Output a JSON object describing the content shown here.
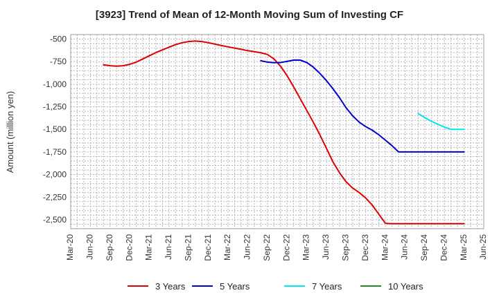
{
  "chart_data": {
    "type": "line",
    "title": "[3923]  Trend of Mean of 12-Month Moving Sum of Investing CF",
    "xlabel": "",
    "ylabel": "Amount (million yen)",
    "ylim": [
      -2600,
      -450
    ],
    "y_ticks": [
      -500,
      -750,
      -1000,
      -1250,
      -1500,
      -1750,
      -2000,
      -2250,
      -2500
    ],
    "y_tick_labels": [
      "-500",
      "-750",
      "-1,000",
      "-1,250",
      "-1,500",
      "-1,750",
      "-2,000",
      "-2,250",
      "-2,500"
    ],
    "x_tick_labels": [
      "Mar-20",
      "Jun-20",
      "Sep-20",
      "Dec-20",
      "Mar-21",
      "Jun-21",
      "Sep-21",
      "Dec-21",
      "Mar-22",
      "Jun-22",
      "Sep-22",
      "Dec-22",
      "Mar-23",
      "Jun-23",
      "Sep-23",
      "Dec-23",
      "Mar-24",
      "Jun-24",
      "Sep-24",
      "Dec-24",
      "Mar-25",
      "Jun-25"
    ],
    "x_index_note": "x values are month offsets from Mar-20",
    "grid": true,
    "legend_position": "bottom",
    "series": [
      {
        "name": "3 Years",
        "color": "#dd0000",
        "x": [
          5,
          6,
          7,
          8,
          9,
          10,
          11,
          12,
          13,
          14,
          15,
          16,
          17,
          18,
          19,
          20,
          21,
          22,
          23,
          24,
          25,
          26,
          27,
          28,
          29,
          30,
          31,
          32,
          33,
          34,
          35,
          36,
          37,
          38,
          39,
          40,
          41,
          42,
          43,
          44,
          45,
          46,
          47,
          48,
          49,
          50,
          51,
          52,
          53,
          54,
          55,
          56,
          57,
          58,
          59,
          60
        ],
        "y": [
          -785,
          -795,
          -800,
          -795,
          -780,
          -755,
          -720,
          -685,
          -650,
          -620,
          -590,
          -562,
          -540,
          -527,
          -522,
          -527,
          -540,
          -556,
          -572,
          -586,
          -600,
          -614,
          -628,
          -640,
          -652,
          -670,
          -720,
          -800,
          -905,
          -1030,
          -1160,
          -1290,
          -1420,
          -1560,
          -1710,
          -1860,
          -1980,
          -2080,
          -2150,
          -2200,
          -2260,
          -2340,
          -2440,
          -2540,
          -2545,
          -2545,
          -2545,
          -2545,
          -2545,
          -2545,
          -2545,
          -2545,
          -2545,
          -2545,
          -2545,
          -2545
        ]
      },
      {
        "name": "5 Years",
        "color": "#0000cc",
        "x": [
          29,
          30,
          31,
          32,
          33,
          34,
          35,
          36,
          37,
          38,
          39,
          40,
          41,
          42,
          43,
          44,
          45,
          46,
          47,
          48,
          49,
          50,
          51,
          52,
          53,
          54,
          55,
          56,
          57,
          58,
          59,
          60
        ],
        "y": [
          -740,
          -755,
          -762,
          -760,
          -748,
          -733,
          -733,
          -760,
          -810,
          -880,
          -960,
          -1050,
          -1150,
          -1260,
          -1350,
          -1420,
          -1470,
          -1510,
          -1560,
          -1620,
          -1680,
          -1750,
          -1750,
          -1750,
          -1750,
          -1750,
          -1750,
          -1750,
          -1750,
          -1750,
          -1750,
          -1750
        ]
      },
      {
        "name": "7 Years",
        "color": "#00e5ee",
        "x": [
          53,
          54,
          55,
          56,
          57,
          58,
          59,
          60
        ],
        "y": [
          -1325,
          -1370,
          -1410,
          -1445,
          -1475,
          -1500,
          -1500,
          -1500
        ]
      },
      {
        "name": "10 Years",
        "color": "#228b22",
        "x": [],
        "y": []
      }
    ]
  }
}
